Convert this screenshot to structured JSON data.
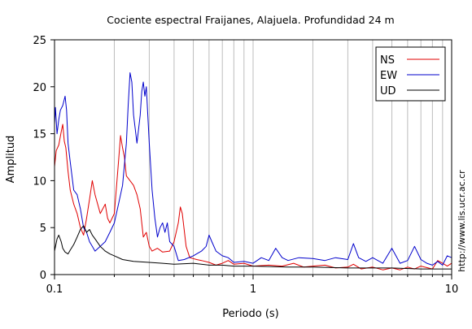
{
  "chart_data": {
    "type": "line",
    "title": "Cociente espectral Fraijanes, Alajuela. Profundidad 24 m",
    "xlabel": "Periodo (s)",
    "ylabel": "Amplitud",
    "x_scale": "log",
    "xlim": [
      0.1,
      10
    ],
    "ylim": [
      0,
      25
    ],
    "x_ticks": [
      {
        "value": 0.1,
        "label": "0.1"
      },
      {
        "value": 1,
        "label": "1"
      },
      {
        "value": 10,
        "label": "10"
      }
    ],
    "y_ticks": [
      {
        "value": 0,
        "label": "0"
      },
      {
        "value": 5,
        "label": "5"
      },
      {
        "value": 10,
        "label": "10"
      },
      {
        "value": 15,
        "label": "15"
      },
      {
        "value": 20,
        "label": "20"
      },
      {
        "value": 25,
        "label": "25"
      }
    ],
    "grid": "vertical, log minor",
    "legend_position": "top-right",
    "side_text": "http://www.lis.ucr.ac.cr",
    "series": [
      {
        "name": "NS",
        "color": "#e00000",
        "points": [
          [
            0.1,
            11.5
          ],
          [
            0.102,
            13.2
          ],
          [
            0.105,
            13.8
          ],
          [
            0.108,
            15.2
          ],
          [
            0.11,
            16.0
          ],
          [
            0.112,
            14.2
          ],
          [
            0.114,
            13.5
          ],
          [
            0.117,
            11.0
          ],
          [
            0.12,
            9.0
          ],
          [
            0.125,
            7.5
          ],
          [
            0.13,
            6.5
          ],
          [
            0.135,
            5.0
          ],
          [
            0.14,
            4.2
          ],
          [
            0.145,
            6.0
          ],
          [
            0.15,
            8.0
          ],
          [
            0.155,
            10.0
          ],
          [
            0.16,
            8.5
          ],
          [
            0.17,
            6.5
          ],
          [
            0.18,
            7.5
          ],
          [
            0.185,
            6.0
          ],
          [
            0.19,
            5.5
          ],
          [
            0.2,
            6.5
          ],
          [
            0.21,
            12.0
          ],
          [
            0.215,
            14.8
          ],
          [
            0.22,
            13.5
          ],
          [
            0.225,
            12.5
          ],
          [
            0.23,
            10.5
          ],
          [
            0.24,
            10.0
          ],
          [
            0.25,
            9.5
          ],
          [
            0.26,
            8.5
          ],
          [
            0.27,
            7.0
          ],
          [
            0.28,
            4.0
          ],
          [
            0.29,
            4.5
          ],
          [
            0.3,
            3.0
          ],
          [
            0.31,
            2.5
          ],
          [
            0.33,
            2.8
          ],
          [
            0.35,
            2.4
          ],
          [
            0.38,
            2.5
          ],
          [
            0.4,
            3.5
          ],
          [
            0.42,
            5.5
          ],
          [
            0.43,
            7.2
          ],
          [
            0.44,
            6.5
          ],
          [
            0.46,
            3.0
          ],
          [
            0.48,
            1.8
          ],
          [
            0.52,
            1.6
          ],
          [
            0.55,
            1.5
          ],
          [
            0.6,
            1.3
          ],
          [
            0.65,
            1.0
          ],
          [
            0.7,
            1.2
          ],
          [
            0.75,
            1.5
          ],
          [
            0.8,
            1.1
          ],
          [
            0.9,
            1.2
          ],
          [
            1.0,
            0.9
          ],
          [
            1.2,
            1.0
          ],
          [
            1.4,
            0.9
          ],
          [
            1.6,
            1.2
          ],
          [
            1.8,
            0.8
          ],
          [
            2.0,
            0.9
          ],
          [
            2.3,
            1.0
          ],
          [
            2.6,
            0.7
          ],
          [
            3.0,
            0.8
          ],
          [
            3.2,
            1.1
          ],
          [
            3.5,
            0.6
          ],
          [
            4.0,
            0.8
          ],
          [
            4.5,
            0.5
          ],
          [
            5.0,
            0.7
          ],
          [
            5.5,
            0.5
          ],
          [
            6.0,
            0.8
          ],
          [
            6.5,
            0.6
          ],
          [
            7.0,
            0.9
          ],
          [
            8.0,
            0.6
          ],
          [
            8.5,
            1.5
          ],
          [
            9.0,
            1.2
          ],
          [
            9.5,
            0.9
          ],
          [
            10.0,
            1.2
          ]
        ]
      },
      {
        "name": "EW",
        "color": "#0000cc",
        "points": [
          [
            0.1,
            16.0
          ],
          [
            0.101,
            17.8
          ],
          [
            0.103,
            15.0
          ],
          [
            0.105,
            16.5
          ],
          [
            0.107,
            17.5
          ],
          [
            0.11,
            18.0
          ],
          [
            0.113,
            19.0
          ],
          [
            0.115,
            17.5
          ],
          [
            0.117,
            14.0
          ],
          [
            0.12,
            12.0
          ],
          [
            0.125,
            9.0
          ],
          [
            0.13,
            8.5
          ],
          [
            0.135,
            7.0
          ],
          [
            0.14,
            5.0
          ],
          [
            0.145,
            4.5
          ],
          [
            0.15,
            3.5
          ],
          [
            0.155,
            3.0
          ],
          [
            0.16,
            2.5
          ],
          [
            0.17,
            3.0
          ],
          [
            0.18,
            3.5
          ],
          [
            0.19,
            4.5
          ],
          [
            0.2,
            5.5
          ],
          [
            0.21,
            7.5
          ],
          [
            0.22,
            9.5
          ],
          [
            0.23,
            14.0
          ],
          [
            0.235,
            18.0
          ],
          [
            0.24,
            21.5
          ],
          [
            0.245,
            20.5
          ],
          [
            0.25,
            17.0
          ],
          [
            0.26,
            14.0
          ],
          [
            0.27,
            17.0
          ],
          [
            0.275,
            19.5
          ],
          [
            0.28,
            20.5
          ],
          [
            0.285,
            19.0
          ],
          [
            0.29,
            20.0
          ],
          [
            0.3,
            14.0
          ],
          [
            0.31,
            9.0
          ],
          [
            0.32,
            6.0
          ],
          [
            0.33,
            4.0
          ],
          [
            0.34,
            5.0
          ],
          [
            0.35,
            5.5
          ],
          [
            0.36,
            4.5
          ],
          [
            0.37,
            5.5
          ],
          [
            0.38,
            3.5
          ],
          [
            0.4,
            3.0
          ],
          [
            0.42,
            1.5
          ],
          [
            0.45,
            1.6
          ],
          [
            0.5,
            2.0
          ],
          [
            0.55,
            2.5
          ],
          [
            0.58,
            3.0
          ],
          [
            0.6,
            4.2
          ],
          [
            0.62,
            3.5
          ],
          [
            0.65,
            2.5
          ],
          [
            0.7,
            2.0
          ],
          [
            0.75,
            1.8
          ],
          [
            0.8,
            1.3
          ],
          [
            0.9,
            1.4
          ],
          [
            1.0,
            1.2
          ],
          [
            1.1,
            1.8
          ],
          [
            1.2,
            1.5
          ],
          [
            1.3,
            2.8
          ],
          [
            1.4,
            1.8
          ],
          [
            1.5,
            1.5
          ],
          [
            1.7,
            1.8
          ],
          [
            2.0,
            1.7
          ],
          [
            2.3,
            1.5
          ],
          [
            2.6,
            1.8
          ],
          [
            3.0,
            1.6
          ],
          [
            3.2,
            3.3
          ],
          [
            3.4,
            1.8
          ],
          [
            3.7,
            1.4
          ],
          [
            4.0,
            1.8
          ],
          [
            4.5,
            1.2
          ],
          [
            5.0,
            2.8
          ],
          [
            5.5,
            1.2
          ],
          [
            6.0,
            1.5
          ],
          [
            6.5,
            3.0
          ],
          [
            7.0,
            1.6
          ],
          [
            7.5,
            1.2
          ],
          [
            8.0,
            1.0
          ],
          [
            8.5,
            1.4
          ],
          [
            9.0,
            1.0
          ],
          [
            9.5,
            2.0
          ],
          [
            10.0,
            1.8
          ]
        ]
      },
      {
        "name": "UD",
        "color": "#000000",
        "points": [
          [
            0.1,
            2.5
          ],
          [
            0.103,
            3.8
          ],
          [
            0.105,
            4.2
          ],
          [
            0.108,
            3.5
          ],
          [
            0.11,
            2.8
          ],
          [
            0.113,
            2.4
          ],
          [
            0.117,
            2.2
          ],
          [
            0.12,
            2.6
          ],
          [
            0.125,
            3.2
          ],
          [
            0.13,
            4.0
          ],
          [
            0.135,
            4.8
          ],
          [
            0.14,
            5.2
          ],
          [
            0.145,
            4.5
          ],
          [
            0.15,
            4.8
          ],
          [
            0.155,
            4.2
          ],
          [
            0.16,
            3.8
          ],
          [
            0.17,
            3.0
          ],
          [
            0.18,
            2.5
          ],
          [
            0.19,
            2.2
          ],
          [
            0.2,
            2.0
          ],
          [
            0.22,
            1.6
          ],
          [
            0.25,
            1.4
          ],
          [
            0.3,
            1.3
          ],
          [
            0.35,
            1.2
          ],
          [
            0.4,
            1.1
          ],
          [
            0.5,
            1.2
          ],
          [
            0.6,
            1.0
          ],
          [
            0.7,
            1.0
          ],
          [
            0.8,
            0.9
          ],
          [
            1.0,
            0.9
          ],
          [
            1.5,
            0.8
          ],
          [
            2.0,
            0.8
          ],
          [
            3.0,
            0.7
          ],
          [
            5.0,
            0.7
          ],
          [
            7.0,
            0.6
          ],
          [
            10.0,
            0.6
          ]
        ]
      }
    ]
  }
}
